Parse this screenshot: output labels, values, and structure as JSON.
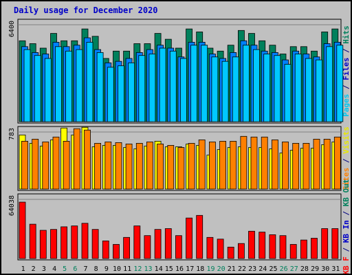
{
  "title": "Daily usage for December 2020",
  "chart_data": [
    {
      "type": "bar",
      "panel": "pages-files-hits",
      "ymax_label": "6400",
      "ymax": 6400,
      "right_label_parts": [
        {
          "text": "Pages",
          "color": "#00c8f0"
        },
        {
          "text": " / ",
          "color": "#000080"
        },
        {
          "text": "Files",
          "color": "#0000c8"
        },
        {
          "text": " / ",
          "color": "#000080"
        },
        {
          "text": "Hits",
          "color": "#00805c"
        }
      ],
      "categories": [
        "1",
        "2",
        "3",
        "4",
        "5",
        "6",
        "7",
        "8",
        "9",
        "10",
        "11",
        "12",
        "13",
        "14",
        "15",
        "16",
        "17",
        "18",
        "19",
        "20",
        "21",
        "22",
        "23",
        "24",
        "25",
        "26",
        "27",
        "28",
        "29",
        "30",
        "31"
      ],
      "series": [
        {
          "name": "Hits",
          "color": "#00805c",
          "values": [
            5500,
            5300,
            5000,
            6000,
            5500,
            5500,
            6300,
            5800,
            4300,
            4800,
            4800,
            5300,
            5300,
            6000,
            5600,
            5000,
            6300,
            6100,
            5000,
            4800,
            5200,
            6200,
            6000,
            5500,
            5200,
            4600,
            5100,
            5100,
            4800,
            6100,
            6300
          ]
        },
        {
          "name": "Files",
          "color": "#0080ff",
          "values": [
            5100,
            4700,
            4600,
            5400,
            5100,
            5200,
            5700,
            4900,
            4000,
            4100,
            4300,
            4700,
            4900,
            5200,
            5000,
            4400,
            5400,
            5400,
            4600,
            4300,
            4700,
            5500,
            5200,
            4800,
            4700,
            4200,
            4800,
            4600,
            4400,
            5300,
            5400
          ]
        },
        {
          "name": "Pages",
          "color": "#00c8ff",
          "values": [
            4900,
            4500,
            4300,
            5100,
            4800,
            4900,
            5400,
            4700,
            3700,
            3800,
            4000,
            4500,
            4600,
            5000,
            4800,
            4300,
            5200,
            5200,
            4400,
            4100,
            4400,
            5200,
            4900,
            4600,
            4500,
            3900,
            4600,
            4300,
            4200,
            5100,
            5200
          ]
        }
      ]
    },
    {
      "type": "bar",
      "panel": "sites-visits",
      "ymax_label": "783",
      "ymax": 783,
      "right_label_parts": [
        {
          "text": "Sites",
          "color": "#ff8000"
        },
        {
          "text": " / ",
          "color": "#000080"
        },
        {
          "text": "Visits",
          "color": "#e8e800"
        }
      ],
      "categories": [
        "1",
        "2",
        "3",
        "4",
        "5",
        "6",
        "7",
        "8",
        "9",
        "10",
        "11",
        "12",
        "13",
        "14",
        "15",
        "16",
        "17",
        "18",
        "19",
        "20",
        "21",
        "22",
        "23",
        "24",
        "25",
        "26",
        "27",
        "28",
        "29",
        "30",
        "31"
      ],
      "series": [
        {
          "name": "Visits",
          "color": "#ffff00",
          "values": [
            780,
            660,
            620,
            710,
            880,
            780,
            890,
            610,
            630,
            630,
            600,
            580,
            620,
            690,
            610,
            610,
            650,
            630,
            490,
            570,
            600,
            610,
            600,
            600,
            580,
            520,
            560,
            590,
            590,
            640,
            680
          ]
        },
        {
          "name": "Sites",
          "color": "#ff8000",
          "values": [
            690,
            720,
            680,
            750,
            690,
            870,
            850,
            660,
            680,
            670,
            650,
            660,
            680,
            650,
            630,
            600,
            660,
            710,
            680,
            690,
            690,
            760,
            750,
            750,
            710,
            680,
            660,
            660,
            720,
            720,
            750
          ]
        }
      ]
    },
    {
      "type": "bar",
      "panel": "kbytes",
      "ymax_label": "64038",
      "ymax": 64038,
      "right_label_parts": [
        {
          "text": "KB F",
          "color": "#ff0000"
        },
        {
          "text": " / ",
          "color": "#000080"
        },
        {
          "text": "KB In",
          "color": "#0000c8"
        },
        {
          "text": " / ",
          "color": "#000080"
        },
        {
          "text": "KB Out",
          "color": "#00805c"
        }
      ],
      "categories": [
        "1",
        "2",
        "3",
        "4",
        "5",
        "6",
        "7",
        "8",
        "9",
        "10",
        "11",
        "12",
        "13",
        "14",
        "15",
        "16",
        "17",
        "18",
        "19",
        "20",
        "21",
        "22",
        "23",
        "24",
        "25",
        "26",
        "27",
        "28",
        "29",
        "30",
        "31"
      ],
      "series": [
        {
          "name": "KB F",
          "color": "#ff0000",
          "values": [
            64038,
            39000,
            32000,
            33000,
            36000,
            37000,
            40000,
            33000,
            20000,
            16000,
            24000,
            37000,
            26000,
            33000,
            34000,
            26000,
            46000,
            49000,
            24000,
            22000,
            13000,
            17000,
            31000,
            30000,
            27000,
            26000,
            16000,
            21000,
            23000,
            34000,
            34000
          ]
        }
      ]
    }
  ]
}
